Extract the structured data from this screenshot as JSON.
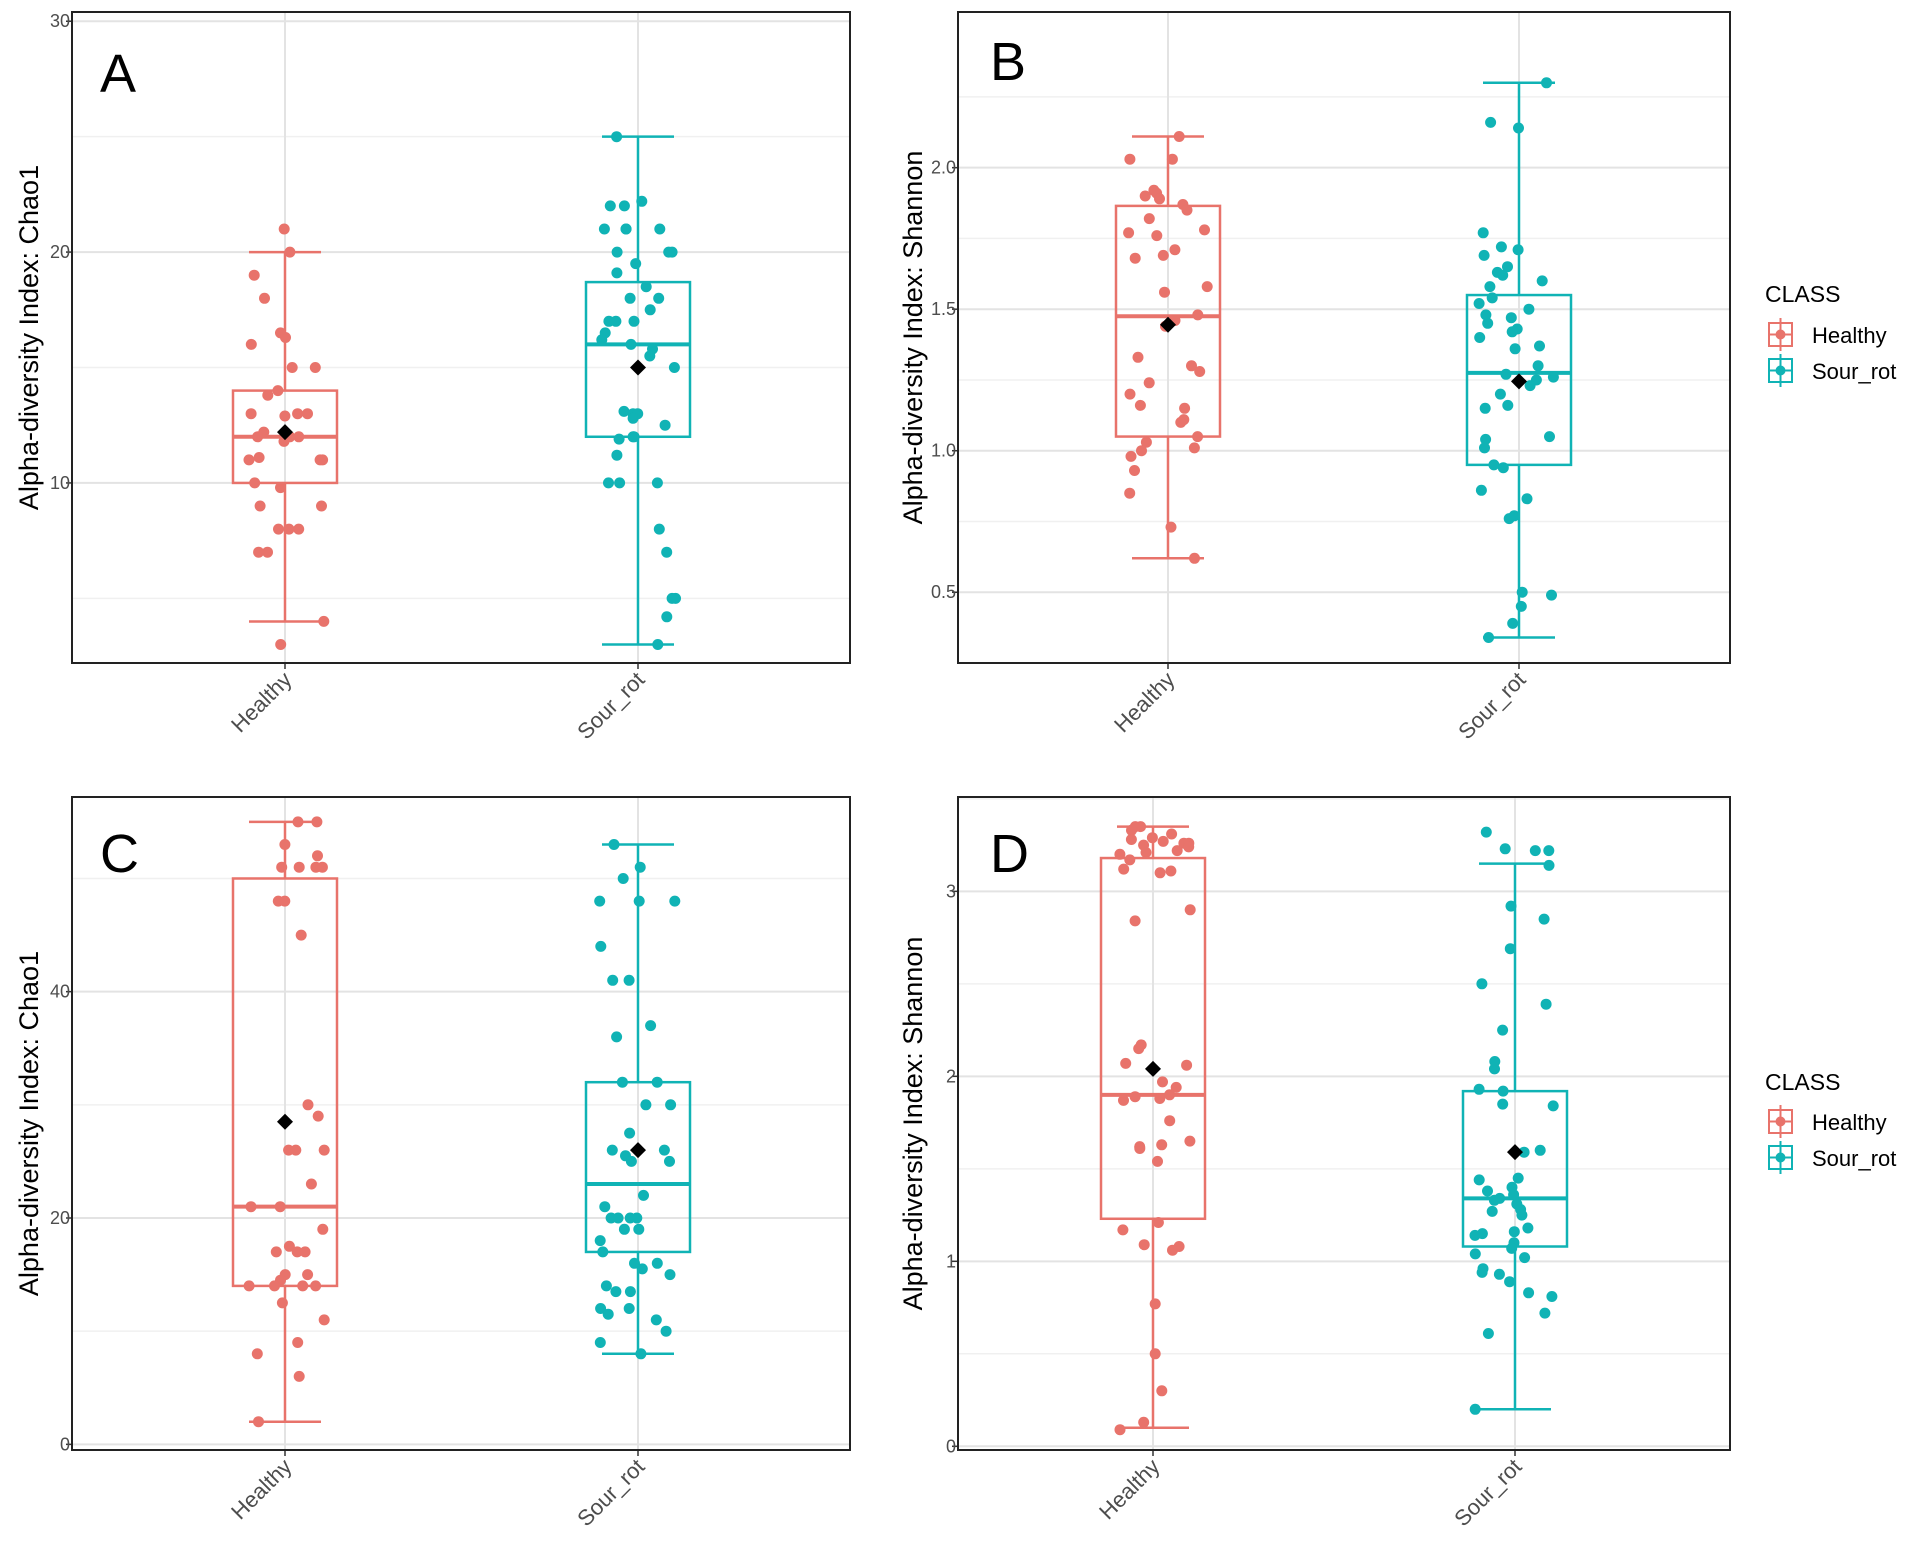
{
  "legend": {
    "title": "CLASS",
    "items": [
      {
        "label": "Healthy",
        "color": "#e8736b"
      },
      {
        "label": "Sour_rot",
        "color": "#10b3b5"
      }
    ]
  },
  "chart_data": [
    {
      "panel": "A",
      "type": "box",
      "ylabel": "Alpha-diversity Index: Chao1",
      "xlabel": "",
      "categories": [
        "Healthy",
        "Sour_rot"
      ],
      "ylim": [
        2.2,
        30.4
      ],
      "yticks": [
        10,
        20,
        30
      ],
      "ytick_labels": [
        "10",
        "20",
        "30"
      ],
      "groups": [
        {
          "name": "Healthy",
          "color": "#e8736b",
          "min": 4.0,
          "q1": 10.0,
          "median": 12.0,
          "q3": 14.0,
          "max": 20.0,
          "mean": 12.2,
          "points": [
            21,
            20,
            19,
            18,
            16.5,
            16.3,
            16,
            15,
            15,
            14,
            13.8,
            13,
            13,
            13,
            12.9,
            12.2,
            12,
            12,
            12,
            11.8,
            11.1,
            11,
            11,
            11,
            10,
            9.8,
            9,
            9,
            8,
            8,
            8,
            7,
            7,
            4,
            3
          ]
        },
        {
          "name": "Sour_rot",
          "color": "#10b3b5",
          "min": 3.0,
          "q1": 12.0,
          "median": 16.0,
          "q3": 18.7,
          "max": 25.0,
          "mean": 15.0,
          "points": [
            25,
            22.2,
            22,
            22,
            21,
            21,
            21,
            21,
            20,
            20,
            20,
            19.5,
            19.1,
            18.5,
            18,
            18,
            17.5,
            17,
            17,
            17,
            16.5,
            16.2,
            16,
            15.8,
            15.5,
            15,
            13.1,
            13,
            13,
            12.8,
            12.5,
            12,
            12,
            11.9,
            11.2,
            10,
            10,
            10,
            8,
            7,
            5,
            5,
            4.2,
            3
          ]
        }
      ]
    },
    {
      "panel": "B",
      "type": "box",
      "ylabel": "Alpha-diversity Index: Shannon",
      "xlabel": "",
      "categories": [
        "Healthy",
        "Sour_rot"
      ],
      "ylim": [
        0.25,
        2.55
      ],
      "yticks": [
        0.5,
        1.0,
        1.5,
        2.0
      ],
      "ytick_labels": [
        "0.5",
        "1.0",
        "1.5",
        "2.0"
      ],
      "groups": [
        {
          "name": "Healthy",
          "color": "#e8736b",
          "min": 0.62,
          "q1": 1.05,
          "median": 1.475,
          "q3": 1.865,
          "max": 2.11,
          "mean": 1.445,
          "points": [
            2.11,
            2.03,
            2.03,
            1.92,
            1.91,
            1.9,
            1.89,
            1.87,
            1.85,
            1.82,
            1.78,
            1.77,
            1.76,
            1.71,
            1.69,
            1.68,
            1.58,
            1.56,
            1.48,
            1.46,
            1.44,
            1.33,
            1.3,
            1.28,
            1.24,
            1.2,
            1.16,
            1.15,
            1.11,
            1.1,
            1.05,
            1.03,
            1.01,
            1.0,
            0.98,
            0.93,
            0.85,
            0.73,
            0.62
          ]
        },
        {
          "name": "Sour_rot",
          "color": "#10b3b5",
          "min": 0.34,
          "q1": 0.95,
          "median": 1.275,
          "q3": 1.55,
          "max": 2.3,
          "mean": 1.245,
          "points": [
            2.3,
            2.16,
            2.14,
            1.77,
            1.72,
            1.71,
            1.69,
            1.65,
            1.63,
            1.62,
            1.6,
            1.58,
            1.54,
            1.52,
            1.5,
            1.48,
            1.47,
            1.45,
            1.43,
            1.42,
            1.4,
            1.37,
            1.36,
            1.3,
            1.27,
            1.26,
            1.25,
            1.23,
            1.2,
            1.16,
            1.15,
            1.05,
            1.04,
            1.01,
            0.95,
            0.94,
            0.86,
            0.83,
            0.77,
            0.76,
            0.5,
            0.49,
            0.45,
            0.39,
            0.34
          ]
        }
      ]
    },
    {
      "panel": "C",
      "type": "box",
      "ylabel": "Alpha-diversity Index: Chao1",
      "xlabel": "",
      "categories": [
        "Healthy",
        "Sour_rot"
      ],
      "ylim": [
        -0.5,
        57.2
      ],
      "yticks": [
        0,
        20,
        40
      ],
      "ytick_labels": [
        "0",
        "20",
        "40"
      ],
      "groups": [
        {
          "name": "Healthy",
          "color": "#e8736b",
          "min": 2.0,
          "q1": 14.0,
          "median": 21.0,
          "q3": 50.0,
          "max": 55.0,
          "mean": 28.5,
          "points": [
            55,
            55,
            53,
            52,
            51,
            51,
            51,
            51,
            48,
            48,
            45,
            30,
            29,
            26,
            26,
            26,
            23,
            21,
            21,
            19,
            17.5,
            17,
            17,
            17,
            15,
            15,
            14.5,
            14,
            14,
            14,
            14,
            12.5,
            11,
            9,
            8,
            6,
            2
          ]
        },
        {
          "name": "Sour_rot",
          "color": "#10b3b5",
          "min": 8.0,
          "q1": 17.0,
          "median": 23.0,
          "q3": 32.0,
          "max": 53.0,
          "mean": 26.0,
          "points": [
            53,
            51,
            50,
            48,
            48,
            48,
            44,
            41,
            41,
            37,
            36,
            32,
            32,
            30,
            30,
            27.5,
            26,
            26,
            25.5,
            25,
            25,
            22,
            21,
            20,
            20,
            20,
            20,
            19,
            19,
            18,
            17,
            16,
            16,
            15.5,
            15,
            14,
            13.5,
            13.5,
            12,
            12,
            11.5,
            11,
            10,
            9,
            8
          ]
        }
      ]
    },
    {
      "panel": "D",
      "type": "box",
      "ylabel": "Alpha-diversity Index: Shannon",
      "xlabel": "",
      "categories": [
        "Healthy",
        "Sour_rot"
      ],
      "ylim": [
        -0.02,
        3.51
      ],
      "yticks": [
        0,
        1,
        2,
        3
      ],
      "ytick_labels": [
        "0",
        "1",
        "2",
        "3"
      ],
      "groups": [
        {
          "name": "Healthy",
          "color": "#e8736b",
          "min": 0.1,
          "q1": 1.23,
          "median": 1.9,
          "q3": 3.18,
          "max": 3.35,
          "mean": 2.04,
          "points": [
            3.35,
            3.35,
            3.33,
            3.31,
            3.29,
            3.28,
            3.27,
            3.26,
            3.26,
            3.25,
            3.24,
            3.22,
            3.21,
            3.2,
            3.17,
            3.12,
            3.11,
            3.1,
            2.9,
            2.84,
            2.17,
            2.15,
            2.07,
            2.06,
            1.97,
            1.94,
            1.9,
            1.89,
            1.88,
            1.87,
            1.76,
            1.65,
            1.63,
            1.62,
            1.61,
            1.54,
            1.21,
            1.17,
            1.09,
            1.08,
            1.06,
            0.77,
            0.5,
            0.3,
            0.13,
            0.09
          ]
        },
        {
          "name": "Sour_rot",
          "color": "#10b3b5",
          "min": 0.2,
          "q1": 1.08,
          "median": 1.34,
          "q3": 1.92,
          "max": 3.15,
          "mean": 1.59,
          "points": [
            3.32,
            3.23,
            3.22,
            3.22,
            3.14,
            2.92,
            2.85,
            2.69,
            2.5,
            2.39,
            2.25,
            2.08,
            2.04,
            1.93,
            1.92,
            1.85,
            1.84,
            1.6,
            1.59,
            1.45,
            1.44,
            1.4,
            1.38,
            1.36,
            1.34,
            1.33,
            1.31,
            1.28,
            1.27,
            1.25,
            1.18,
            1.16,
            1.15,
            1.14,
            1.1,
            1.07,
            1.04,
            1.02,
            0.96,
            0.94,
            0.93,
            0.89,
            0.83,
            0.81,
            0.72,
            0.61,
            0.2
          ]
        }
      ]
    }
  ]
}
